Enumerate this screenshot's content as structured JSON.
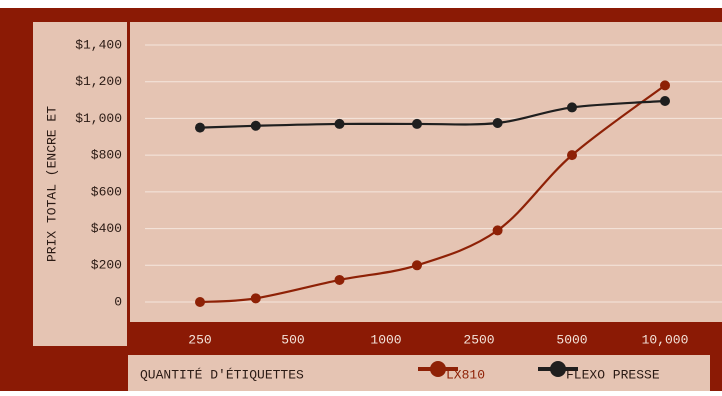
{
  "chart_data": {
    "type": "line",
    "y_label": "PRIX TOTAL (ENCRE ET",
    "x_label": "QUANTITÉ D'ÉTIQUETTES",
    "x": [
      250,
      400,
      750,
      1500,
      3000,
      5000,
      10000
    ],
    "series": [
      {
        "name": "LX810",
        "color": "#8e2106",
        "values": [
          0,
          20,
          120,
          200,
          390,
          800,
          1180
        ]
      },
      {
        "name": "FLEXO PRESSE",
        "color": "#1f1f1f",
        "values": [
          950,
          960,
          970,
          970,
          975,
          1060,
          1095
        ]
      }
    ],
    "xticks": [
      250,
      500,
      1000,
      2500,
      5000,
      {
        "value": 10000,
        "label": "10,000"
      }
    ],
    "ylim": [
      0,
      1400
    ],
    "yticks": [
      {
        "value": 0,
        "label": "0"
      },
      {
        "value": 200,
        "label": "$200"
      },
      {
        "value": 400,
        "label": "$400"
      },
      {
        "value": 600,
        "label": "$600"
      },
      {
        "value": 800,
        "label": "$800"
      },
      {
        "value": 1000,
        "label": "$1,000"
      },
      {
        "value": 1200,
        "label": "$1,200"
      },
      {
        "value": 1400,
        "label": "$1,400"
      }
    ],
    "grid": true
  }
}
